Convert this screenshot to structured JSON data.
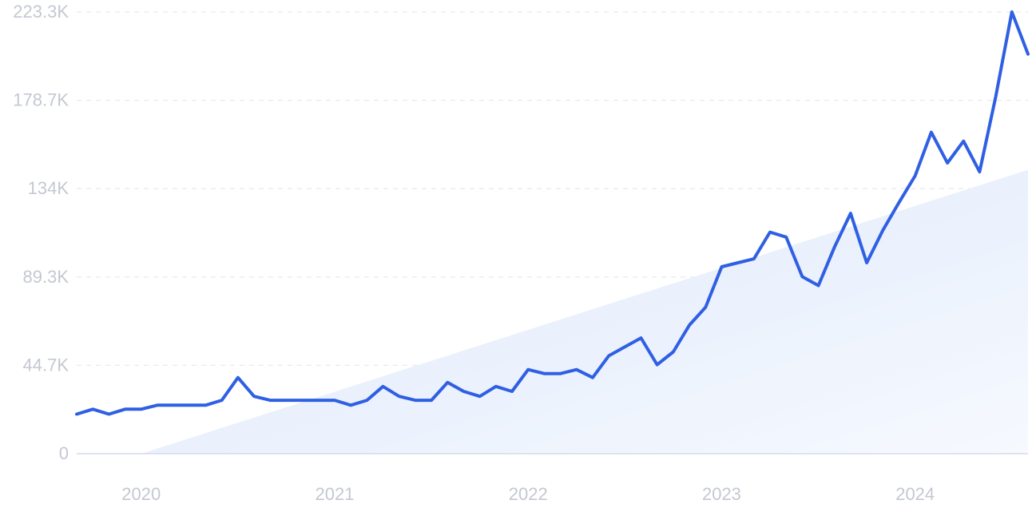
{
  "chart_data": {
    "type": "line",
    "title": "",
    "xlabel": "",
    "ylabel": "",
    "y_ticks": [
      {
        "value": 0,
        "label": "0"
      },
      {
        "value": 44700,
        "label": "44.7K"
      },
      {
        "value": 89300,
        "label": "89.3K"
      },
      {
        "value": 134000,
        "label": "134K"
      },
      {
        "value": 178700,
        "label": "178.7K"
      },
      {
        "value": 223300,
        "label": "223.3K"
      }
    ],
    "x_ticks": [
      {
        "value": "2020-01",
        "label": "2020"
      },
      {
        "value": "2021-01",
        "label": "2021"
      },
      {
        "value": "2022-01",
        "label": "2022"
      },
      {
        "value": "2023-01",
        "label": "2023"
      },
      {
        "value": "2024-01",
        "label": "2024"
      }
    ],
    "ylim": [
      0,
      223300
    ],
    "xlim": [
      "2019-09",
      "2024-08"
    ],
    "grid": true,
    "colors": {
      "line": "#2f5fe3",
      "trend_fill": "#e8f0fc",
      "tick_text": "#c4c8d2",
      "grid": "#dfe3ec"
    },
    "series": [
      {
        "x": [
          "2019-09",
          "2019-10",
          "2019-11",
          "2019-12",
          "2020-01",
          "2020-02",
          "2020-03",
          "2020-04",
          "2020-05",
          "2020-06",
          "2020-07",
          "2020-08",
          "2020-09",
          "2020-10",
          "2020-11",
          "2020-12",
          "2021-01",
          "2021-02",
          "2021-03",
          "2021-04",
          "2021-05",
          "2021-06",
          "2021-07",
          "2021-08",
          "2021-09",
          "2021-10",
          "2021-11",
          "2021-12",
          "2022-01",
          "2022-02",
          "2022-03",
          "2022-04",
          "2022-05",
          "2022-06",
          "2022-07",
          "2022-08",
          "2022-09",
          "2022-10",
          "2022-11",
          "2022-12",
          "2023-01",
          "2023-02",
          "2023-03",
          "2023-04",
          "2023-05",
          "2023-06",
          "2023-07",
          "2023-08",
          "2023-09",
          "2023-10",
          "2023-11",
          "2023-12",
          "2024-01",
          "2024-02",
          "2024-03",
          "2024-04",
          "2024-05",
          "2024-06",
          "2024-07",
          "2024-08"
        ],
        "values": [
          20000,
          22500,
          20000,
          22500,
          22500,
          24500,
          24500,
          24500,
          24500,
          27000,
          38500,
          29000,
          27000,
          27000,
          27000,
          27000,
          27000,
          24500,
          27000,
          34000,
          29000,
          27000,
          27000,
          36000,
          31500,
          29000,
          34000,
          31500,
          42500,
          40500,
          40500,
          42500,
          38500,
          49500,
          54000,
          58500,
          45000,
          51500,
          65000,
          74000,
          94500,
          96500,
          98500,
          112000,
          109500,
          89500,
          85000,
          104500,
          121500,
          96500,
          113000,
          127000,
          140500,
          162500,
          147000,
          158000,
          142500,
          180500,
          223300,
          202000
        ]
      }
    ],
    "trend": {
      "x": [
        "2020-01",
        "2024-08"
      ],
      "values": [
        0,
        143500
      ]
    }
  }
}
